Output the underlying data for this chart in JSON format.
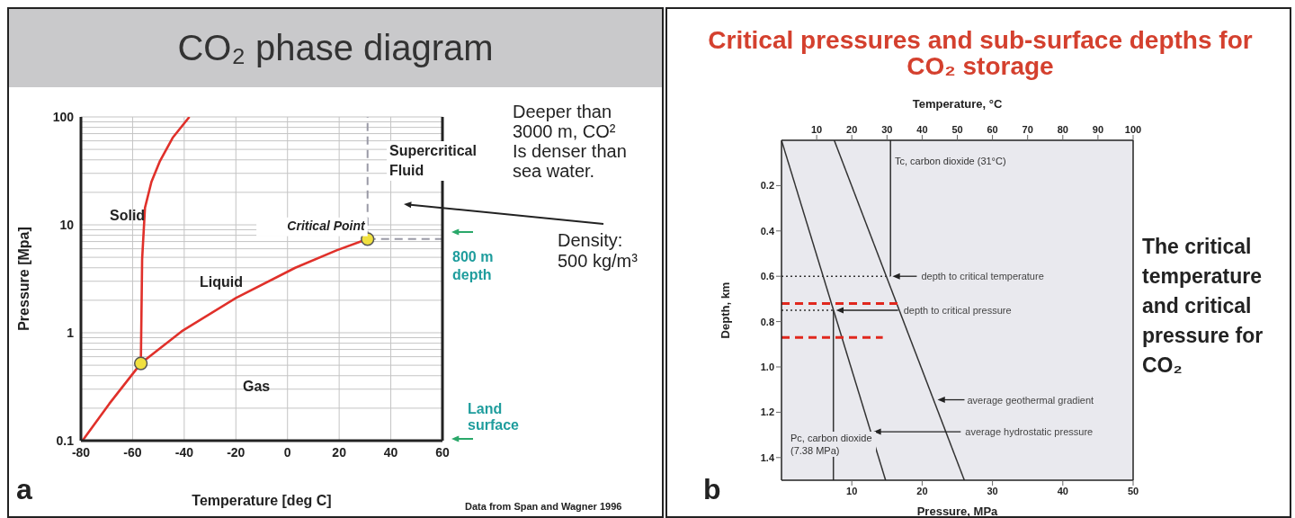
{
  "chart_data": [
    {
      "type": "line",
      "title": "CO₂ phase diagram",
      "xlabel": "Temperature [deg C]",
      "ylabel": "Pressure [Mpa]",
      "xlim": [
        -80,
        60
      ],
      "xticks": [
        -80,
        -60,
        -40,
        -20,
        0,
        20,
        40,
        60
      ],
      "ylim": [
        0.1,
        100
      ],
      "yticks": [
        0.1,
        {
          "value": 0.2,
          "label": null
        },
        {
          "value": 0.3,
          "label": null
        },
        {
          "value": 0.4,
          "label": null
        },
        {
          "value": 0.5,
          "label": null
        },
        {
          "value": 0.6,
          "label": null
        },
        {
          "value": 0.7,
          "label": null
        },
        {
          "value": 0.8,
          "label": null
        },
        {
          "value": 0.9,
          "label": null
        },
        1,
        {
          "value": 2,
          "label": null
        },
        {
          "value": 3,
          "label": null
        },
        {
          "value": 4,
          "label": null
        },
        {
          "value": 5,
          "label": null
        },
        {
          "value": 6,
          "label": null
        },
        {
          "value": 7,
          "label": null
        },
        {
          "value": 8,
          "label": null
        },
        {
          "value": 9,
          "label": null
        },
        10,
        {
          "value": 20,
          "label": null
        },
        {
          "value": 30,
          "label": null
        },
        {
          "value": 40,
          "label": null
        },
        {
          "value": 50,
          "label": null
        },
        {
          "value": 60,
          "label": null
        },
        {
          "value": 70,
          "label": null
        },
        {
          "value": 80,
          "label": null
        },
        {
          "value": 90,
          "label": null
        },
        100
      ],
      "log": "y",
      "grid": true,
      "series": [
        {
          "color": "#e0302a",
          "x": [
            -79.4,
            -69,
            -56.8,
            -41,
            -20,
            3,
            19,
            31
          ],
          "values": [
            0.1,
            0.22,
            0.52,
            1.03,
            2.1,
            4,
            5.8,
            7.38
          ]
        },
        {
          "color": "#e0302a",
          "x": [
            -56.8,
            -56.3,
            -55.2,
            -52.7,
            -49.4,
            -44.5,
            -38
          ],
          "values": [
            0.52,
            4.8,
            14.4,
            25,
            39,
            64,
            100
          ]
        },
        {
          "color": "#9a9aa6",
          "line_style": "dashed",
          "x": [
            31,
            31
          ],
          "values": [
            7.38,
            100
          ]
        },
        {
          "color": "#9a9aa6",
          "line_style": "dashed",
          "x": [
            31,
            60
          ],
          "values": [
            7.38,
            7.38
          ]
        },
        {
          "type": "scatter",
          "color": "#f0e040",
          "marker": "circle",
          "x": [
            -56.8,
            31
          ],
          "values": [
            0.52,
            7.38
          ]
        }
      ],
      "annotations": [
        "Solid",
        "Liquid",
        "Gas",
        "Supercritical Fluid",
        {
          "text": "Critical Point",
          "x": 31,
          "y": 7.38
        },
        "Density: 500 kg/m³",
        "800 m depth",
        "Land surface",
        "Deeper than 3000 m, CO² Is denser than sea water.",
        "Data from Span and Wagner 1996",
        "a"
      ]
    },
    {
      "type": "line",
      "title": "Critical pressures and sub-surface depths for CO₂ storage",
      "xlabel": "Pressure, MPa",
      "x2label": "Temperature, °C",
      "ylabel": "Depth, km",
      "xlim": [
        0,
        50
      ],
      "xticks": [
        10,
        20,
        30,
        40,
        50
      ],
      "x2lim": [
        0,
        100
      ],
      "x2ticks": [
        10,
        20,
        30,
        40,
        50,
        60,
        70,
        80,
        90,
        100
      ],
      "ylim": [
        1.5,
        0
      ],
      "yticks": [
        0.2,
        0.4,
        0.6,
        0.8,
        {
          "value": 1,
          "label": "1.0"
        },
        1.2,
        1.4
      ],
      "series": [
        {
          "color": "#333333",
          "x": [
            0,
            14.8
          ],
          "values": [
            0,
            1.5
          ]
        },
        {
          "color": "#333333",
          "axis": "x2",
          "x": [
            15,
            52
          ],
          "values": [
            0,
            1.5
          ]
        },
        {
          "color": "#333333",
          "axis": "x2",
          "x": [
            31,
            31
          ],
          "values": [
            0.6,
            0
          ]
        },
        {
          "color": "#333333",
          "x": [
            7.38,
            7.38
          ],
          "values": [
            0.75,
            1.5
          ]
        },
        {
          "color": "#333333",
          "line_style": "dotted",
          "x": [
            0,
            15.4
          ],
          "values": [
            0.6,
            0.6
          ]
        },
        {
          "color": "#333333",
          "line_style": "dotted",
          "x": [
            0,
            7.38
          ],
          "values": [
            0.75,
            0.75
          ]
        },
        {
          "color": "#e0281e",
          "line_style": "dashed",
          "x": [
            0,
            16.7
          ],
          "values": [
            0.72,
            0.72
          ]
        },
        {
          "color": "#e0281e",
          "line_style": "dashed",
          "x": [
            0,
            14.4
          ],
          "values": [
            0.87,
            0.87
          ]
        }
      ],
      "annotations": [
        {
          "text": "depth to critical temperature",
          "x": 15.4,
          "y": 0.6
        },
        {
          "text": "depth to critical pressure",
          "x": 7.38,
          "y": 0.75
        },
        {
          "text": "average geothermal gradient",
          "x": 21.8,
          "y": 1.145
        },
        {
          "text": "average hydrostatic pressure",
          "x": 12.7,
          "y": 1.286
        },
        "Tc, carbon dioxide (31°C)",
        "Pc, carbon dioxide (7.38 MPa)",
        "The critical temperature and critical pressure for CO₂",
        "b"
      ]
    }
  ]
}
